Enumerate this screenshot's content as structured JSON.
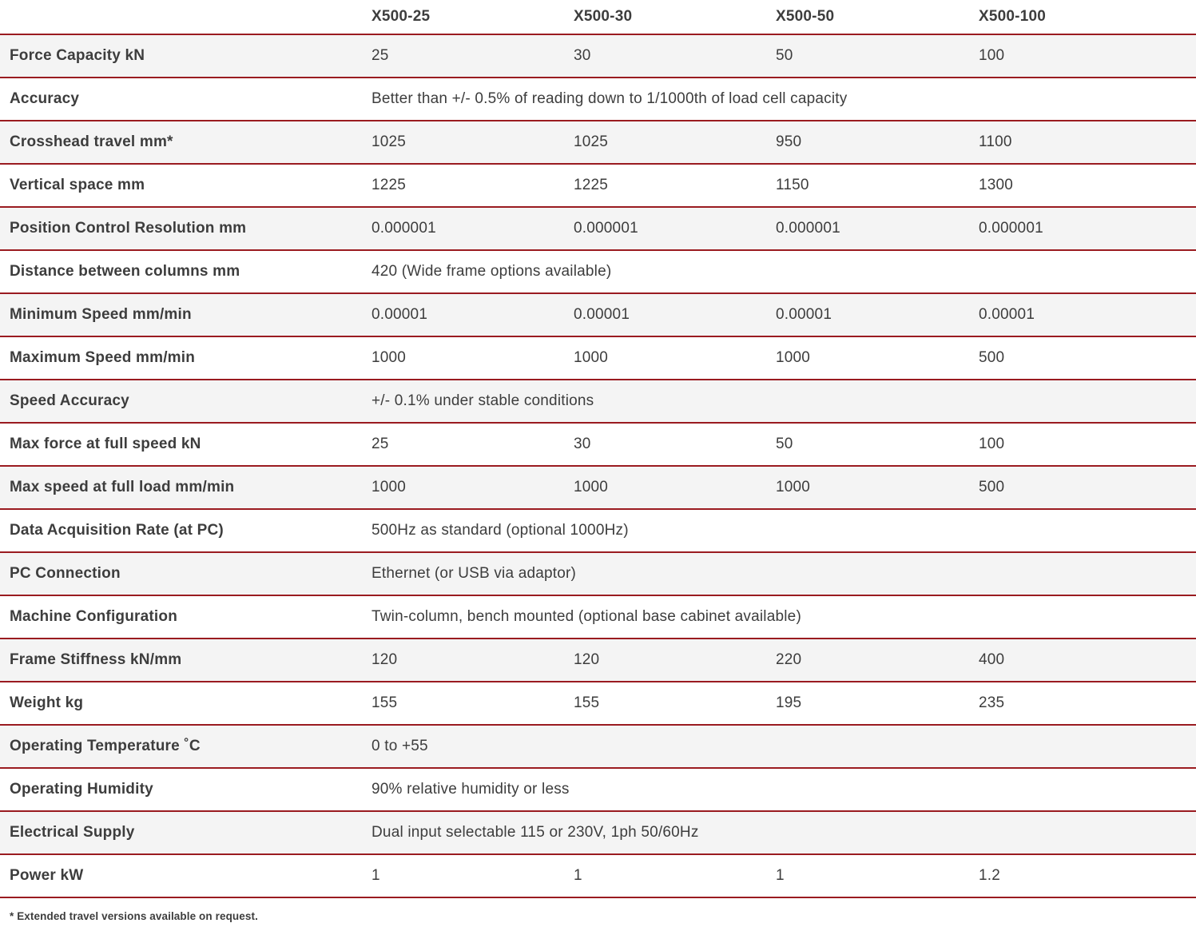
{
  "colors": {
    "rule": "#9a1b20",
    "text": "#3d3d3d",
    "row_shade": "#f4f4f4"
  },
  "table": {
    "columns": [
      "",
      "X500-25",
      "X500-30",
      "X500-50",
      "X500-100"
    ],
    "rows": [
      {
        "label": "Force Capacity kN",
        "values": [
          "25",
          "30",
          "50",
          "100"
        ]
      },
      {
        "label": "Accuracy",
        "span": "Better than +/- 0.5% of reading down to 1/1000th of load cell capacity"
      },
      {
        "label": "Crosshead travel mm*",
        "values": [
          "1025",
          "1025",
          "950",
          "1100"
        ]
      },
      {
        "label": "Vertical space mm",
        "values": [
          "1225",
          "1225",
          "1150",
          "1300"
        ]
      },
      {
        "label": "Position Control Resolution mm",
        "values": [
          "0.000001",
          "0.000001",
          "0.000001",
          "0.000001"
        ]
      },
      {
        "label": "Distance between columns mm",
        "span": "420 (Wide frame options available)"
      },
      {
        "label": "Minimum Speed mm/min",
        "values": [
          "0.00001",
          "0.00001",
          "0.00001",
          "0.00001"
        ]
      },
      {
        "label": "Maximum Speed mm/min",
        "values": [
          "1000",
          "1000",
          "1000",
          "500"
        ]
      },
      {
        "label": "Speed Accuracy",
        "span": "+/- 0.1% under stable conditions"
      },
      {
        "label": "Max force at full speed kN",
        "values": [
          "25",
          "30",
          "50",
          "100"
        ]
      },
      {
        "label": "Max speed at full load mm/min",
        "values": [
          "1000",
          "1000",
          "1000",
          "500"
        ]
      },
      {
        "label": "Data Acquisition Rate (at PC)",
        "span": "500Hz as standard (optional 1000Hz)"
      },
      {
        "label": "PC Connection",
        "span": "Ethernet (or USB via adaptor)"
      },
      {
        "label": "Machine Configuration",
        "span": "Twin-column, bench mounted (optional base cabinet available)"
      },
      {
        "label": "Frame Stiffness kN/mm",
        "values": [
          "120",
          "120",
          "220",
          "400"
        ]
      },
      {
        "label": "Weight kg",
        "values": [
          "155",
          "155",
          "195",
          "235"
        ]
      },
      {
        "label": "Operating Temperature ˚C",
        "span": "0 to +55"
      },
      {
        "label": "Operating Humidity",
        "span": "90% relative humidity or less"
      },
      {
        "label": "Electrical Supply",
        "span": "Dual input selectable 115 or 230V, 1ph 50/60Hz"
      },
      {
        "label": "Power kW",
        "values": [
          "1",
          "1",
          "1",
          "1.2"
        ]
      }
    ],
    "footnote": "* Extended travel versions available on request."
  }
}
